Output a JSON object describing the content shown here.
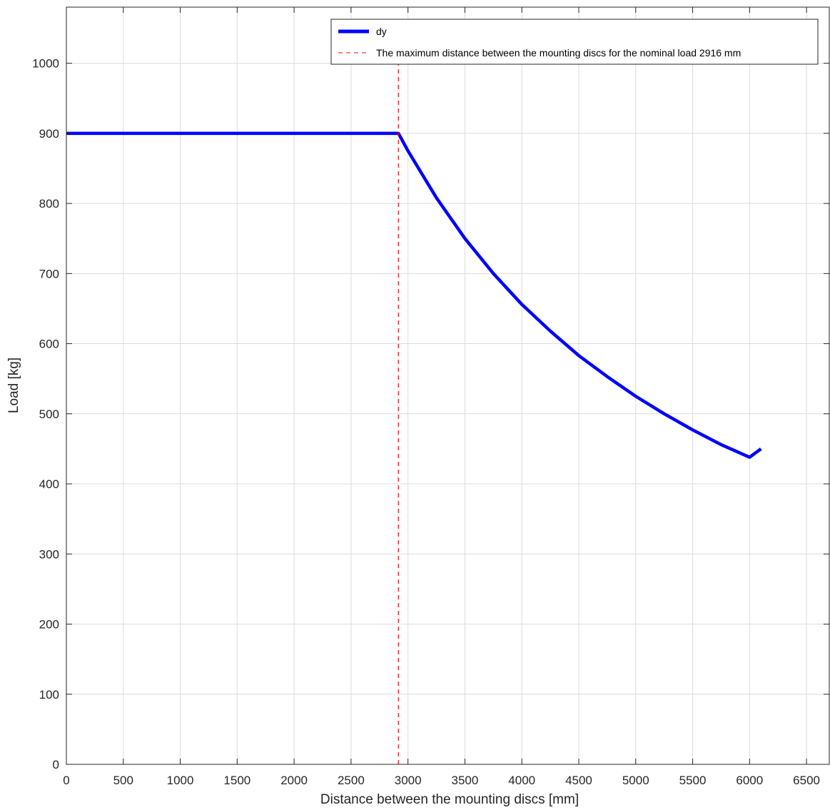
{
  "chart_data": {
    "type": "line",
    "title": "",
    "xlabel": "Distance between the mounting discs [mm]",
    "ylabel": "Load [kg]",
    "xlim": [
      0,
      6700
    ],
    "ylim": [
      0,
      1080
    ],
    "xticks": [
      0,
      500,
      1000,
      1500,
      2000,
      2500,
      3000,
      3500,
      4000,
      4500,
      5000,
      5500,
      6000,
      6500
    ],
    "yticks": [
      0,
      100,
      200,
      300,
      400,
      500,
      600,
      700,
      800,
      900,
      1000
    ],
    "grid": true,
    "legend_position": "top-right",
    "series": [
      {
        "name": "dy",
        "style": "solid",
        "color": "#0000ff",
        "x": [
          0,
          500,
          1000,
          1500,
          2000,
          2500,
          2916,
          3000,
          3250,
          3500,
          3750,
          4000,
          4250,
          4500,
          4750,
          5000,
          5250,
          5500,
          5750,
          6000,
          6100
        ],
        "y": [
          900,
          900,
          900,
          900,
          900,
          900,
          900,
          875,
          808,
          750,
          700,
          656,
          618,
          583,
          553,
          525,
          500,
          477,
          456,
          438,
          450
        ]
      },
      {
        "name": "The maximum distance between the mounting discs for the nominal load 2916 mm",
        "style": "dashed",
        "color": "#ff0000",
        "x": [
          2916,
          2916
        ],
        "y": [
          0,
          1000
        ]
      }
    ]
  }
}
